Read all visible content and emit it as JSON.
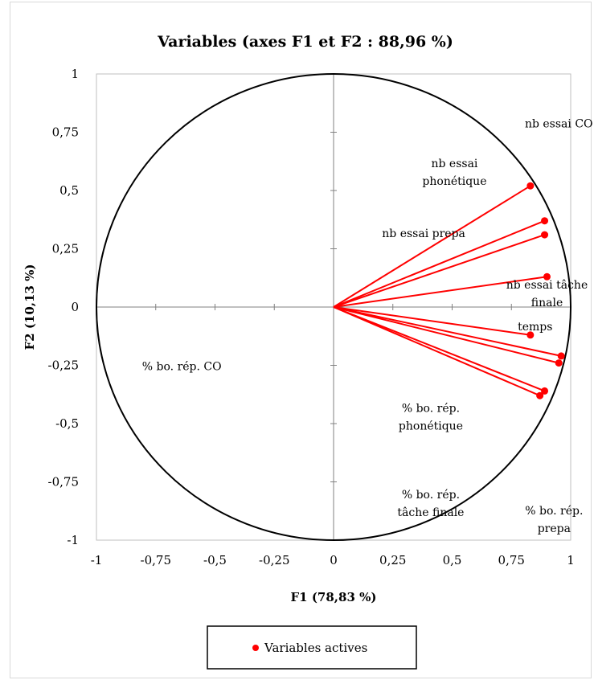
{
  "chart_data": {
    "type": "scatter",
    "title": "Variables (axes F1 et F2 : 88,96 %)",
    "xlabel": "F1 (78,83 %)",
    "ylabel": "F2 (10,13 %)",
    "xlim": [
      -1,
      1
    ],
    "ylim": [
      -1,
      1
    ],
    "x_ticks": [
      "-1",
      "-0,75",
      "-0,5",
      "-0,25",
      "0",
      "0,25",
      "0,5",
      "0,75",
      "1"
    ],
    "y_ticks": [
      "1",
      "0,75",
      "0,5",
      "0,25",
      "0",
      "-0,25",
      "-0,5",
      "-0,75",
      "-1"
    ],
    "grid": false,
    "correlation_circle": true,
    "color": "#ff0000",
    "series": [
      {
        "name": "Variables actives",
        "points": [
          {
            "x": 0.83,
            "y": 0.52
          },
          {
            "x": 0.89,
            "y": 0.37
          },
          {
            "x": 0.89,
            "y": 0.31
          },
          {
            "x": 0.9,
            "y": 0.13
          },
          {
            "x": 0.83,
            "y": -0.12
          },
          {
            "x": 0.96,
            "y": -0.21
          },
          {
            "x": 0.95,
            "y": -0.24
          },
          {
            "x": 0.89,
            "y": -0.36
          },
          {
            "x": 0.87,
            "y": -0.38
          }
        ]
      }
    ],
    "annotations": [
      {
        "lines": [
          "nb essai CO"
        ],
        "x": 0.95,
        "y": 0.77
      },
      {
        "lines": [
          "nb essai",
          "phonétique"
        ],
        "x": 0.51,
        "y": 0.6
      },
      {
        "lines": [
          "nb essai prepa"
        ],
        "x": 0.38,
        "y": 0.3
      },
      {
        "lines": [
          "nb essai tâche",
          "finale"
        ],
        "x": 0.9,
        "y": 0.08
      },
      {
        "lines": [
          "temps"
        ],
        "x": 0.85,
        "y": -0.1
      },
      {
        "lines": [
          "% bo. rép. CO"
        ],
        "x": -0.64,
        "y": -0.27
      },
      {
        "lines": [
          "% bo. rép.",
          "phonétique"
        ],
        "x": 0.41,
        "y": -0.45
      },
      {
        "lines": [
          "% bo. rép.",
          "tâche finale"
        ],
        "x": 0.41,
        "y": -0.82
      },
      {
        "lines": [
          "% bo. rép.",
          "prepa"
        ],
        "x": 0.93,
        "y": -0.89
      }
    ],
    "legend": {
      "label": "Variables actives",
      "position": "bottom"
    }
  }
}
